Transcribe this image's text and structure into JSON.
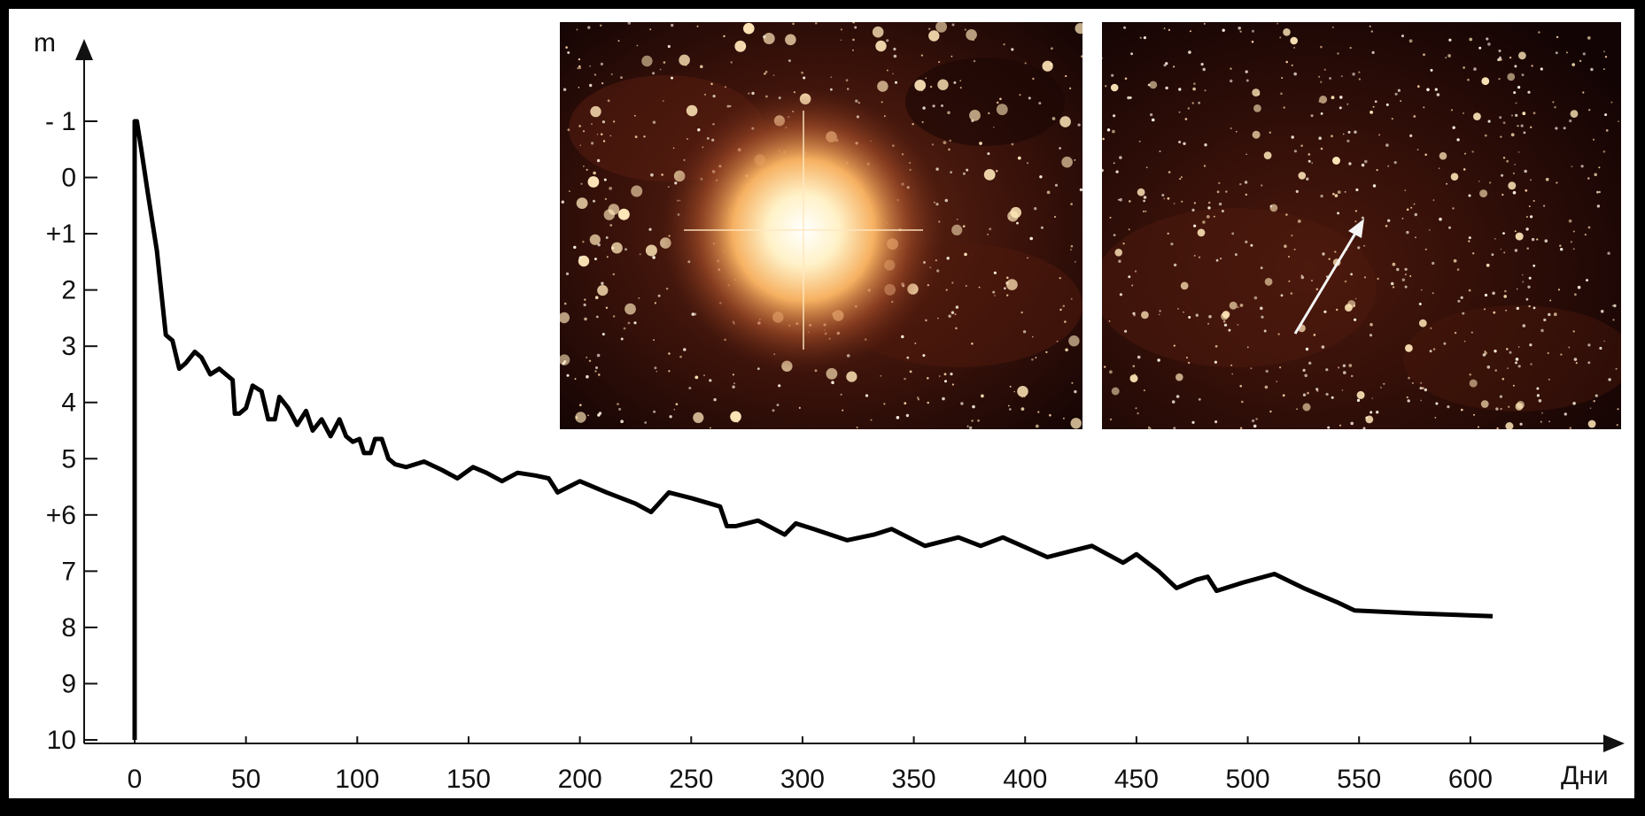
{
  "chart_data": {
    "type": "line",
    "xlabel": "Дни",
    "ylabel": "m",
    "xlim": [
      0,
      650
    ],
    "ylim": [
      10,
      -2
    ],
    "y_inverted": true,
    "x_ticks": [
      "0",
      "50",
      "100",
      "150",
      "200",
      "250",
      "300",
      "350",
      "400",
      "450",
      "500",
      "550",
      "600"
    ],
    "x_tick_values": [
      0,
      50,
      100,
      150,
      200,
      250,
      300,
      350,
      400,
      450,
      500,
      550,
      600
    ],
    "y_ticks": [
      "- 1",
      "0",
      "+1",
      "2",
      "3",
      "4",
      "5",
      "+6",
      "7",
      "8",
      "9",
      "10"
    ],
    "y_tick_values": [
      -1,
      0,
      1,
      2,
      3,
      4,
      5,
      6,
      7,
      8,
      9,
      10
    ],
    "grid": false,
    "series": [
      {
        "x": [
          0,
          0,
          1,
          3,
          6,
          10,
          14,
          17,
          20,
          23,
          27,
          30,
          34,
          38,
          41,
          44,
          45,
          47,
          50,
          53,
          57,
          60,
          63,
          65,
          69,
          73,
          77,
          80,
          84,
          88,
          92,
          95,
          98,
          101,
          103,
          106,
          108,
          111,
          114,
          117,
          122,
          130,
          138,
          145,
          152,
          158,
          165,
          172,
          180,
          186,
          190,
          195,
          200,
          212,
          225,
          232,
          240,
          250,
          263,
          266,
          270,
          280,
          292,
          297,
          305,
          320,
          332,
          340,
          355,
          370,
          380,
          390,
          410,
          420,
          430,
          437,
          444,
          450,
          460,
          468,
          477,
          482,
          486,
          498,
          512,
          525,
          540,
          548,
          575,
          610
        ],
        "y": [
          10,
          -1,
          -1,
          -0.5,
          0.3,
          1.3,
          2.8,
          2.9,
          3.4,
          3.3,
          3.1,
          3.2,
          3.5,
          3.4,
          3.5,
          3.6,
          4.2,
          4.2,
          4.1,
          3.7,
          3.8,
          4.3,
          4.3,
          3.9,
          4.1,
          4.4,
          4.15,
          4.5,
          4.3,
          4.6,
          4.3,
          4.6,
          4.7,
          4.65,
          4.9,
          4.9,
          4.65,
          4.65,
          5.0,
          5.1,
          5.15,
          5.05,
          5.2,
          5.35,
          5.15,
          5.25,
          5.4,
          5.25,
          5.3,
          5.35,
          5.6,
          5.5,
          5.4,
          5.6,
          5.8,
          5.95,
          5.6,
          5.7,
          5.85,
          6.2,
          6.2,
          6.1,
          6.35,
          6.15,
          6.25,
          6.45,
          6.35,
          6.25,
          6.55,
          6.4,
          6.55,
          6.4,
          6.75,
          6.65,
          6.55,
          6.7,
          6.85,
          6.7,
          7.0,
          7.3,
          7.15,
          7.1,
          7.35,
          7.2,
          7.05,
          7.3,
          7.55,
          7.7,
          7.75,
          7.8
        ]
      }
    ]
  },
  "photos": {
    "left": {
      "description_icon": "bright-star-photo-icon"
    },
    "right": {
      "description_icon": "faint-star-photo-icon",
      "arrow_icon": "pointer-arrow-icon"
    }
  }
}
